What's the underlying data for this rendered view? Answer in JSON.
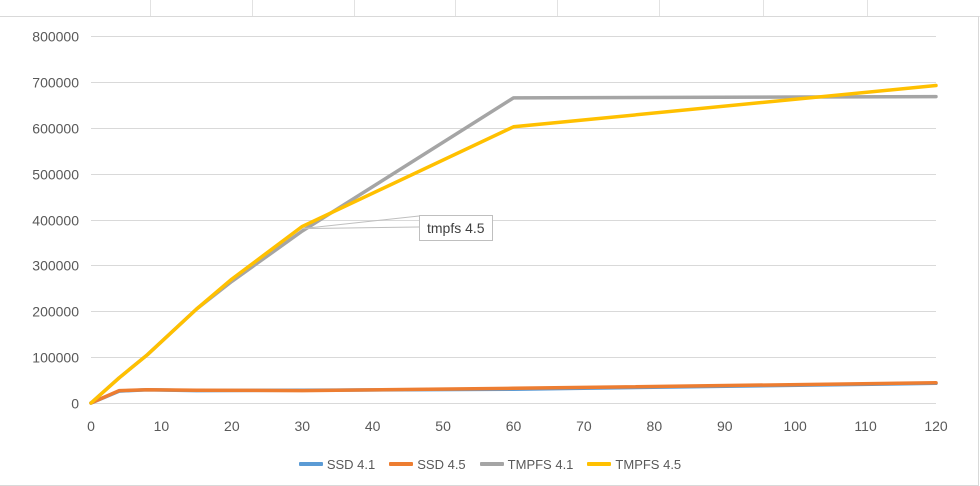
{
  "chart_data": {
    "type": "line",
    "title": "",
    "xlabel": "",
    "ylabel": "",
    "xlim": [
      0,
      120
    ],
    "ylim": [
      0,
      800000
    ],
    "x_ticks": [
      "0",
      "10",
      "20",
      "30",
      "40",
      "50",
      "60",
      "70",
      "80",
      "90",
      "100",
      "110",
      "120"
    ],
    "y_ticks": [
      "0",
      "100000",
      "200000",
      "300000",
      "400000",
      "500000",
      "600000",
      "700000",
      "800000"
    ],
    "grid": true,
    "legend_position": "bottom",
    "series": [
      {
        "name": "SSD 4.1",
        "color": "#5b9bd5",
        "points": [
          [
            0,
            0
          ],
          [
            4,
            26000
          ],
          [
            8,
            29000
          ],
          [
            15,
            27000
          ],
          [
            30,
            28000
          ],
          [
            60,
            30000
          ],
          [
            120,
            43000
          ]
        ]
      },
      {
        "name": "SSD 4.5",
        "color": "#ed7d31",
        "points": [
          [
            0,
            0
          ],
          [
            4,
            27000
          ],
          [
            8,
            29000
          ],
          [
            15,
            28000
          ],
          [
            30,
            27000
          ],
          [
            60,
            32000
          ],
          [
            120,
            44000
          ]
        ]
      },
      {
        "name": "TMPFS 4.1",
        "color": "#a5a5a5",
        "points": [
          [
            0,
            0
          ],
          [
            4,
            55000
          ],
          [
            8,
            105000
          ],
          [
            15,
            205000
          ],
          [
            20,
            265000
          ],
          [
            30,
            375000
          ],
          [
            60,
            665000
          ],
          [
            120,
            668000
          ]
        ]
      },
      {
        "name": "TMPFS 4.5",
        "color": "#ffc000",
        "points": [
          [
            0,
            0
          ],
          [
            4,
            55000
          ],
          [
            8,
            105000
          ],
          [
            15,
            205000
          ],
          [
            20,
            270000
          ],
          [
            30,
            385000
          ],
          [
            60,
            602000
          ],
          [
            120,
            692000
          ]
        ]
      }
    ],
    "annotations": [
      {
        "text": "tmpfs 4.5",
        "x": 30,
        "y": 380000
      }
    ]
  }
}
